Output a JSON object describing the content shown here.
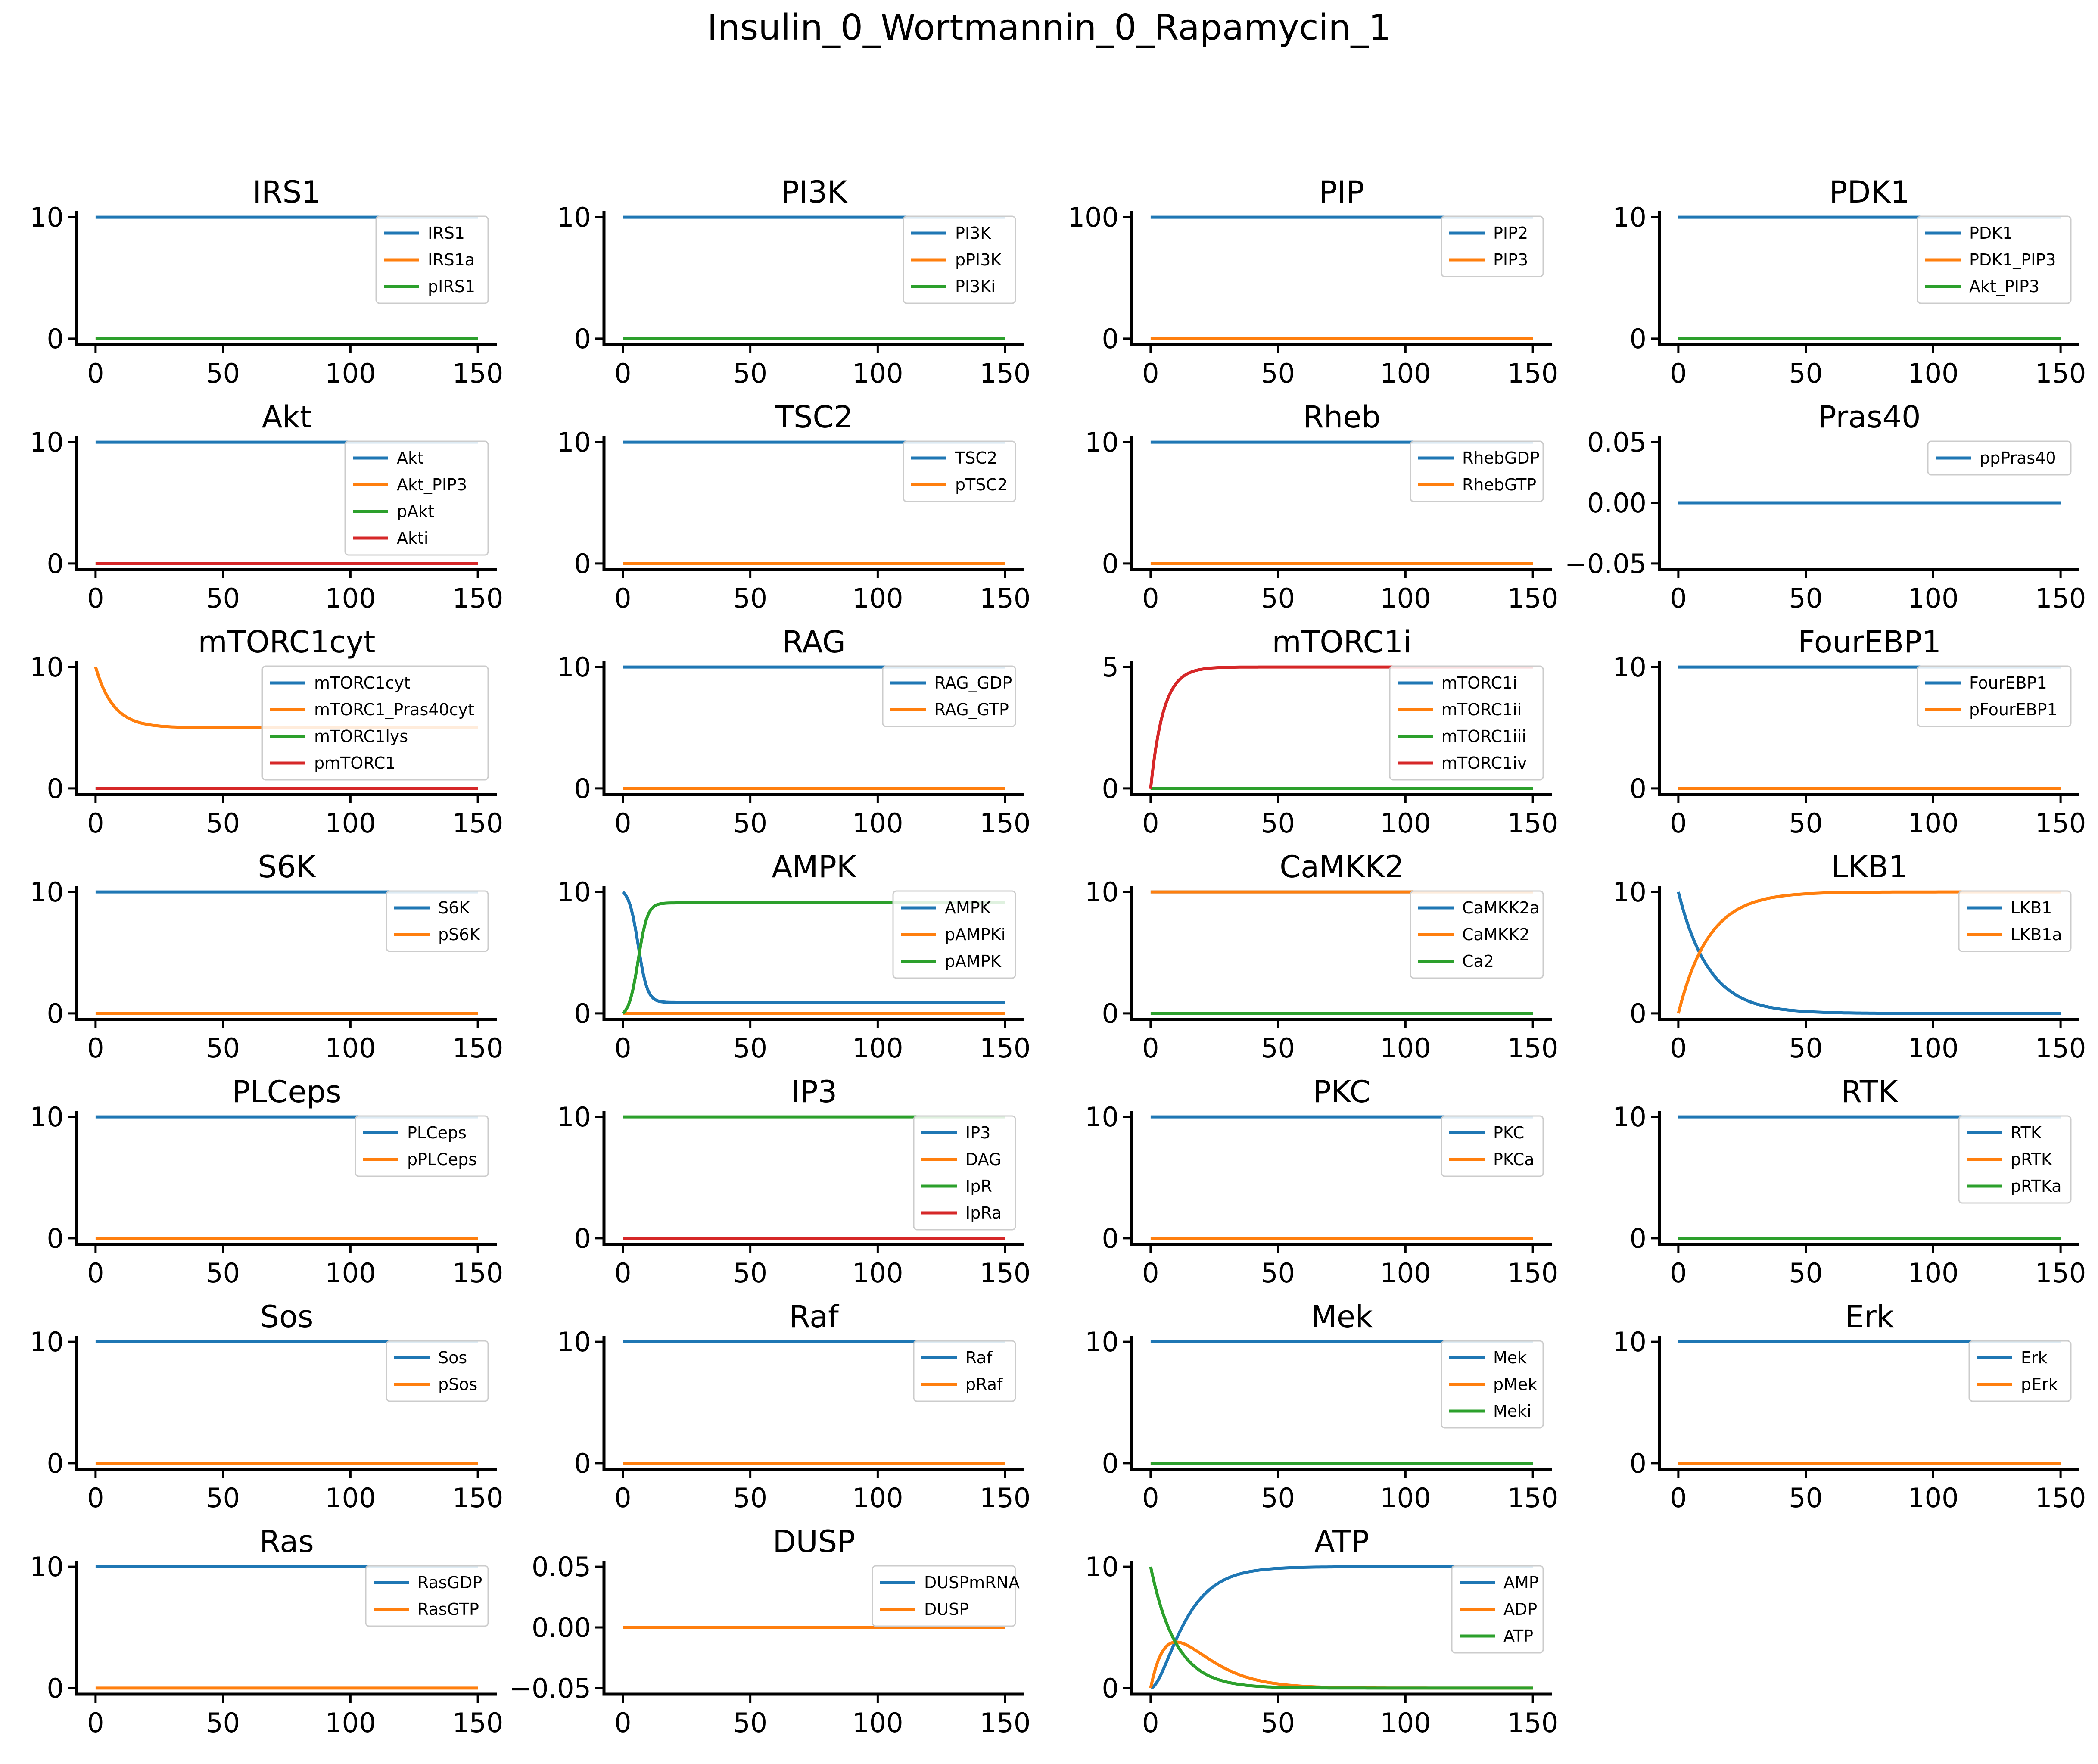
{
  "suptitle": "Insulin_0_Wortmannin_0_Rapamycin_1",
  "colors": {
    "c0": "#1f77b4",
    "c1": "#ff7f0e",
    "c2": "#2ca02c",
    "c3": "#d62728"
  },
  "chart_data": [
    {
      "type": "line",
      "title": "IRS1",
      "xlim": [
        0,
        150
      ],
      "xticks": [
        0,
        50,
        100,
        150
      ],
      "ylim": [
        0,
        10
      ],
      "yticks": [
        0,
        10
      ],
      "series": [
        {
          "name": "IRS1",
          "values": "const:10"
        },
        {
          "name": "IRS1a",
          "values": "const:0"
        },
        {
          "name": "pIRS1",
          "values": "const:0"
        }
      ]
    },
    {
      "type": "line",
      "title": "PI3K",
      "xlim": [
        0,
        150
      ],
      "xticks": [
        0,
        50,
        100,
        150
      ],
      "ylim": [
        0,
        10
      ],
      "yticks": [
        0,
        10
      ],
      "series": [
        {
          "name": "PI3K",
          "values": "const:10"
        },
        {
          "name": "pPI3K",
          "values": "const:0"
        },
        {
          "name": "PI3Ki",
          "values": "const:0"
        }
      ]
    },
    {
      "type": "line",
      "title": "PIP",
      "xlim": [
        0,
        150
      ],
      "xticks": [
        0,
        50,
        100,
        150
      ],
      "ylim": [
        0,
        100
      ],
      "yticks": [
        0,
        100
      ],
      "series": [
        {
          "name": "PIP2",
          "values": "const:100"
        },
        {
          "name": "PIP3",
          "values": "const:0"
        }
      ]
    },
    {
      "type": "line",
      "title": "PDK1",
      "xlim": [
        0,
        150
      ],
      "xticks": [
        0,
        50,
        100,
        150
      ],
      "ylim": [
        0,
        10
      ],
      "yticks": [
        0,
        10
      ],
      "series": [
        {
          "name": "PDK1",
          "values": "const:10"
        },
        {
          "name": "PDK1_PIP3",
          "values": "const:0"
        },
        {
          "name": "Akt_PIP3",
          "values": "const:0"
        }
      ]
    },
    {
      "type": "line",
      "title": "Akt",
      "xlim": [
        0,
        150
      ],
      "xticks": [
        0,
        50,
        100,
        150
      ],
      "ylim": [
        0,
        10
      ],
      "yticks": [
        0,
        10
      ],
      "series": [
        {
          "name": "Akt",
          "values": "const:10"
        },
        {
          "name": "Akt_PIP3",
          "values": "const:0"
        },
        {
          "name": "pAkt",
          "values": "const:0"
        },
        {
          "name": "Akti",
          "values": "const:0"
        }
      ]
    },
    {
      "type": "line",
      "title": "TSC2",
      "xlim": [
        0,
        150
      ],
      "xticks": [
        0,
        50,
        100,
        150
      ],
      "ylim": [
        0,
        10
      ],
      "yticks": [
        0,
        10
      ],
      "series": [
        {
          "name": "TSC2",
          "values": "const:10"
        },
        {
          "name": "pTSC2",
          "values": "const:0"
        }
      ]
    },
    {
      "type": "line",
      "title": "Rheb",
      "xlim": [
        0,
        150
      ],
      "xticks": [
        0,
        50,
        100,
        150
      ],
      "ylim": [
        0,
        10
      ],
      "yticks": [
        0,
        10
      ],
      "series": [
        {
          "name": "RhebGDP",
          "values": "const:10"
        },
        {
          "name": "RhebGTP",
          "values": "const:0"
        }
      ]
    },
    {
      "type": "line",
      "title": "Pras40",
      "xlim": [
        0,
        150
      ],
      "xticks": [
        0,
        50,
        100,
        150
      ],
      "ylim": [
        -0.05,
        0.05
      ],
      "yticks": [
        -0.05,
        0,
        0.05
      ],
      "yticklabels": [
        "−0.05",
        "0.00",
        "0.05"
      ],
      "series": [
        {
          "name": "ppPras40",
          "values": "const:0"
        }
      ]
    },
    {
      "type": "line",
      "title": "mTORC1cyt",
      "xlim": [
        0,
        150
      ],
      "xticks": [
        0,
        50,
        100,
        150
      ],
      "ylim": [
        0,
        10
      ],
      "yticks": [
        0,
        10
      ],
      "series": [
        {
          "name": "mTORC1cyt",
          "values": "const:0"
        },
        {
          "name": "mTORC1_Pras40cyt",
          "values": "decay:10:5:7"
        },
        {
          "name": "mTORC1lys",
          "values": "const:0"
        },
        {
          "name": "pmTORC1",
          "values": "const:0"
        }
      ]
    },
    {
      "type": "line",
      "title": "RAG",
      "xlim": [
        0,
        150
      ],
      "xticks": [
        0,
        50,
        100,
        150
      ],
      "ylim": [
        0,
        10
      ],
      "yticks": [
        0,
        10
      ],
      "series": [
        {
          "name": "RAG_GDP",
          "values": "const:10"
        },
        {
          "name": "RAG_GTP",
          "values": "const:0"
        }
      ]
    },
    {
      "type": "line",
      "title": "mTORC1i",
      "xlim": [
        0,
        150
      ],
      "xticks": [
        0,
        50,
        100,
        150
      ],
      "ylim": [
        0,
        5
      ],
      "yticks": [
        0,
        5
      ],
      "series": [
        {
          "name": "mTORC1i",
          "values": "const:0"
        },
        {
          "name": "mTORC1ii",
          "values": "const:0"
        },
        {
          "name": "mTORC1iii",
          "values": "const:0"
        },
        {
          "name": "mTORC1iv",
          "values": "decay:0:5:5"
        }
      ]
    },
    {
      "type": "line",
      "title": "FourEBP1",
      "xlim": [
        0,
        150
      ],
      "xticks": [
        0,
        50,
        100,
        150
      ],
      "ylim": [
        0,
        10
      ],
      "yticks": [
        0,
        10
      ],
      "series": [
        {
          "name": "FourEBP1",
          "values": "const:10"
        },
        {
          "name": "pFourEBP1",
          "values": "const:0"
        }
      ]
    },
    {
      "type": "line",
      "title": "S6K",
      "xlim": [
        0,
        150
      ],
      "xticks": [
        0,
        50,
        100,
        150
      ],
      "ylim": [
        0,
        10
      ],
      "yticks": [
        0,
        10
      ],
      "series": [
        {
          "name": "S6K",
          "values": "const:10"
        },
        {
          "name": "pS6K",
          "values": "const:0"
        }
      ]
    },
    {
      "type": "line",
      "title": "AMPK",
      "xlim": [
        0,
        150
      ],
      "xticks": [
        0,
        50,
        100,
        150
      ],
      "ylim": [
        0,
        10
      ],
      "yticks": [
        0,
        10
      ],
      "series": [
        {
          "name": "AMPK",
          "values": "sig:10:0.9:6:1.8"
        },
        {
          "name": "pAMPKi",
          "values": "const:0"
        },
        {
          "name": "pAMPK",
          "values": "sig:0:9.1:6:1.8"
        }
      ]
    },
    {
      "type": "line",
      "title": "CaMKK2",
      "xlim": [
        0,
        150
      ],
      "xticks": [
        0,
        50,
        100,
        150
      ],
      "ylim": [
        0,
        10
      ],
      "yticks": [
        0,
        10
      ],
      "series": [
        {
          "name": "CaMKK2a",
          "values": "const:10"
        },
        {
          "name": "CaMKK2",
          "values": "const:10"
        },
        {
          "name": "Ca2",
          "values": "const:0"
        }
      ]
    },
    {
      "type": "line",
      "title": "LKB1",
      "xlim": [
        0,
        150
      ],
      "xticks": [
        0,
        50,
        100,
        150
      ],
      "ylim": [
        0,
        10
      ],
      "yticks": [
        0,
        10
      ],
      "series": [
        {
          "name": "LKB1",
          "values": "decay:10:0:12"
        },
        {
          "name": "LKB1a",
          "values": "decay:0:10:12"
        }
      ]
    },
    {
      "type": "line",
      "title": "PLCeps",
      "xlim": [
        0,
        150
      ],
      "xticks": [
        0,
        50,
        100,
        150
      ],
      "ylim": [
        0,
        10
      ],
      "yticks": [
        0,
        10
      ],
      "series": [
        {
          "name": "PLCeps",
          "values": "const:10"
        },
        {
          "name": "pPLCeps",
          "values": "const:0"
        }
      ]
    },
    {
      "type": "line",
      "title": "IP3",
      "xlim": [
        0,
        150
      ],
      "xticks": [
        0,
        50,
        100,
        150
      ],
      "ylim": [
        0,
        10
      ],
      "yticks": [
        0,
        10
      ],
      "series": [
        {
          "name": "IP3",
          "values": "const:0"
        },
        {
          "name": "DAG",
          "values": "const:0"
        },
        {
          "name": "IpR",
          "values": "const:10"
        },
        {
          "name": "IpRa",
          "values": "const:0"
        }
      ]
    },
    {
      "type": "line",
      "title": "PKC",
      "xlim": [
        0,
        150
      ],
      "xticks": [
        0,
        50,
        100,
        150
      ],
      "ylim": [
        0,
        10
      ],
      "yticks": [
        0,
        10
      ],
      "series": [
        {
          "name": "PKC",
          "values": "const:10"
        },
        {
          "name": "PKCa",
          "values": "const:0"
        }
      ]
    },
    {
      "type": "line",
      "title": "RTK",
      "xlim": [
        0,
        150
      ],
      "xticks": [
        0,
        50,
        100,
        150
      ],
      "ylim": [
        0,
        10
      ],
      "yticks": [
        0,
        10
      ],
      "series": [
        {
          "name": "RTK",
          "values": "const:10"
        },
        {
          "name": "pRTK",
          "values": "const:0"
        },
        {
          "name": "pRTKa",
          "values": "const:0"
        }
      ]
    },
    {
      "type": "line",
      "title": "Sos",
      "xlim": [
        0,
        150
      ],
      "xticks": [
        0,
        50,
        100,
        150
      ],
      "ylim": [
        0,
        10
      ],
      "yticks": [
        0,
        10
      ],
      "series": [
        {
          "name": "Sos",
          "values": "const:10"
        },
        {
          "name": "pSos",
          "values": "const:0"
        }
      ]
    },
    {
      "type": "line",
      "title": "Raf",
      "xlim": [
        0,
        150
      ],
      "xticks": [
        0,
        50,
        100,
        150
      ],
      "ylim": [
        0,
        10
      ],
      "yticks": [
        0,
        10
      ],
      "series": [
        {
          "name": "Raf",
          "values": "const:10"
        },
        {
          "name": "pRaf",
          "values": "const:0"
        }
      ]
    },
    {
      "type": "line",
      "title": "Mek",
      "xlim": [
        0,
        150
      ],
      "xticks": [
        0,
        50,
        100,
        150
      ],
      "ylim": [
        0,
        10
      ],
      "yticks": [
        0,
        10
      ],
      "series": [
        {
          "name": "Mek",
          "values": "const:10"
        },
        {
          "name": "pMek",
          "values": "const:0"
        },
        {
          "name": "Meki",
          "values": "const:0"
        }
      ]
    },
    {
      "type": "line",
      "title": "Erk",
      "xlim": [
        0,
        150
      ],
      "xticks": [
        0,
        50,
        100,
        150
      ],
      "ylim": [
        0,
        10
      ],
      "yticks": [
        0,
        10
      ],
      "series": [
        {
          "name": "Erk",
          "values": "const:10"
        },
        {
          "name": "pErk",
          "values": "const:0"
        }
      ]
    },
    {
      "type": "line",
      "title": "Ras",
      "xlim": [
        0,
        150
      ],
      "xticks": [
        0,
        50,
        100,
        150
      ],
      "ylim": [
        0,
        10
      ],
      "yticks": [
        0,
        10
      ],
      "series": [
        {
          "name": "RasGDP",
          "values": "const:10"
        },
        {
          "name": "RasGTP",
          "values": "const:0"
        }
      ]
    },
    {
      "type": "line",
      "title": "DUSP",
      "xlim": [
        0,
        150
      ],
      "xticks": [
        0,
        50,
        100,
        150
      ],
      "ylim": [
        -0.05,
        0.05
      ],
      "yticks": [
        -0.05,
        0,
        0.05
      ],
      "yticklabels": [
        "−0.05",
        "0.00",
        "0.05"
      ],
      "series": [
        {
          "name": "DUSPmRNA",
          "values": "const:0"
        },
        {
          "name": "DUSP",
          "values": "const:0"
        }
      ]
    },
    {
      "type": "line",
      "title": "ATP",
      "xlim": [
        0,
        150
      ],
      "xticks": [
        0,
        50,
        100,
        150
      ],
      "ylim": [
        0,
        10
      ],
      "yticks": [
        0,
        10
      ],
      "series": [
        {
          "name": "AMP",
          "values": "amp"
        },
        {
          "name": "ADP",
          "values": "adp"
        },
        {
          "name": "ATP",
          "values": "decay:10:0:10"
        }
      ]
    }
  ]
}
